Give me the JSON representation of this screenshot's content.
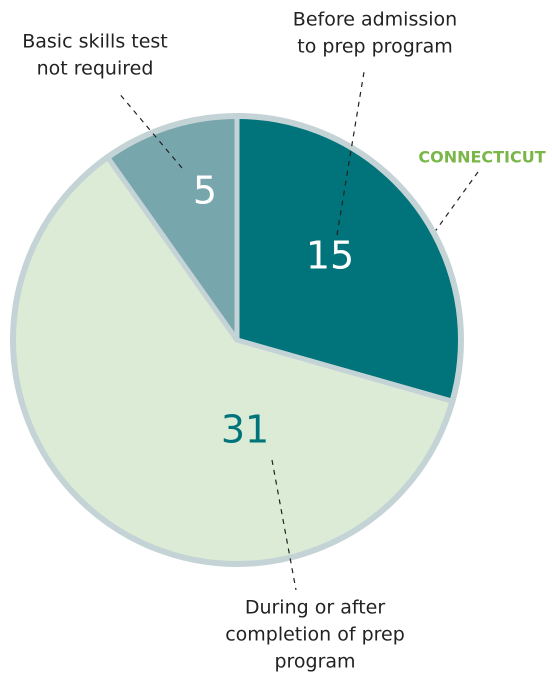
{
  "chart_data": {
    "type": "pie",
    "annotation": "CONNECTICUT",
    "annotation_color": "#7ab648",
    "categories": [
      [
        "Before admission",
        "to prep program"
      ],
      [
        "During or after",
        "completion of prep",
        "program"
      ],
      [
        "Basic skills test",
        "not required"
      ]
    ],
    "values": [
      15,
      31,
      5
    ],
    "colors": [
      "#00747a",
      "#dcebd5",
      "#78a6ad"
    ],
    "value_label_colors": [
      "#ffffff",
      "#00747a",
      "#ffffff"
    ],
    "start_angle": 0,
    "direction": "clockwise"
  }
}
